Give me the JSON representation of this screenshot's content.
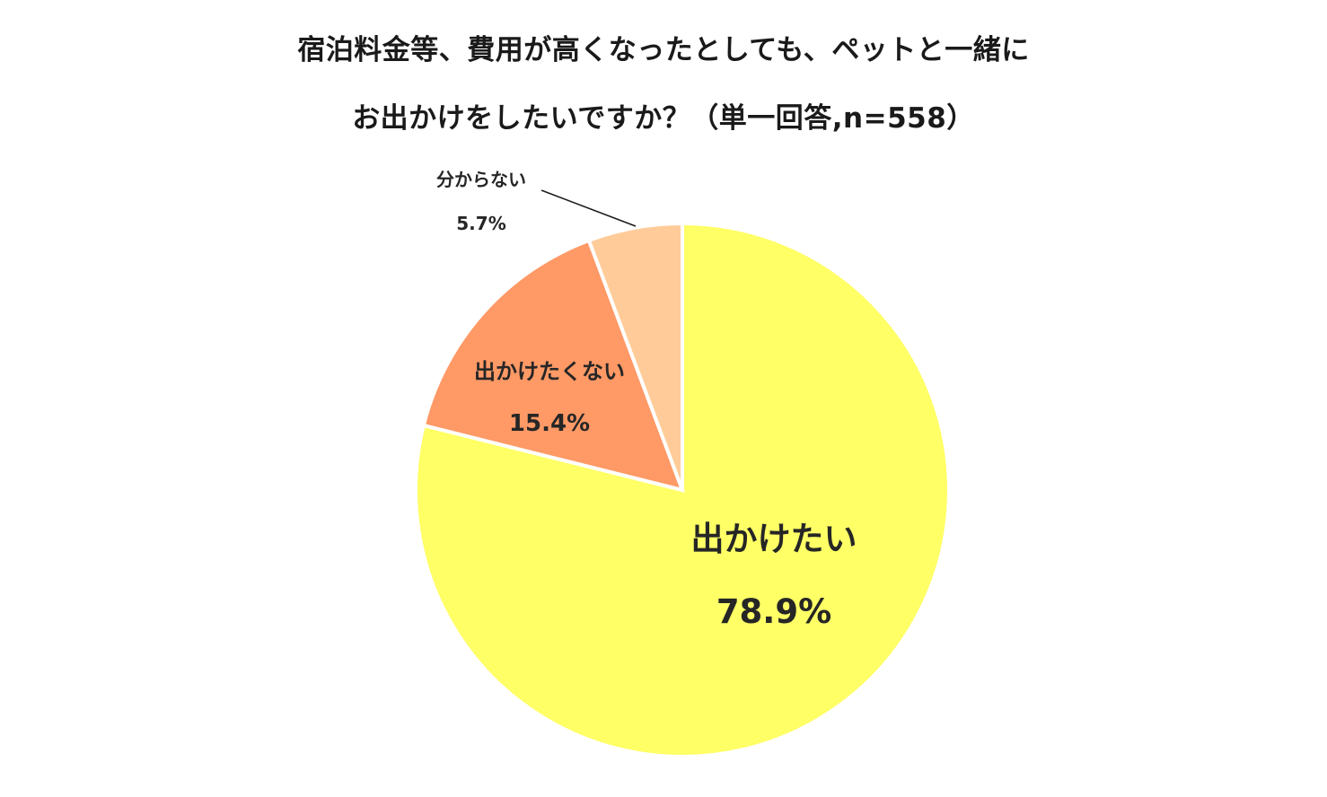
{
  "chart_data": {
    "type": "pie",
    "title": [
      "宿泊料金等、費用が高くなったとしても、ペットと一緒に",
      "お出かけをしたいですか？（単一回答,n=558）"
    ],
    "slices": [
      {
        "label": "出かけたい",
        "value": 78.9,
        "value_label": "78.9%",
        "color": "#FFFF66"
      },
      {
        "label": "出かけたくない",
        "value": 15.4,
        "value_label": "15.4%",
        "color": "#FF9966"
      },
      {
        "label": "分からない",
        "value": 5.7,
        "value_label": "5.7%",
        "color": "#FFCC99"
      }
    ],
    "start_angle": "12 o'clock",
    "direction": "clockwise",
    "legend": "none",
    "slice_border_color": "#ffffff"
  }
}
